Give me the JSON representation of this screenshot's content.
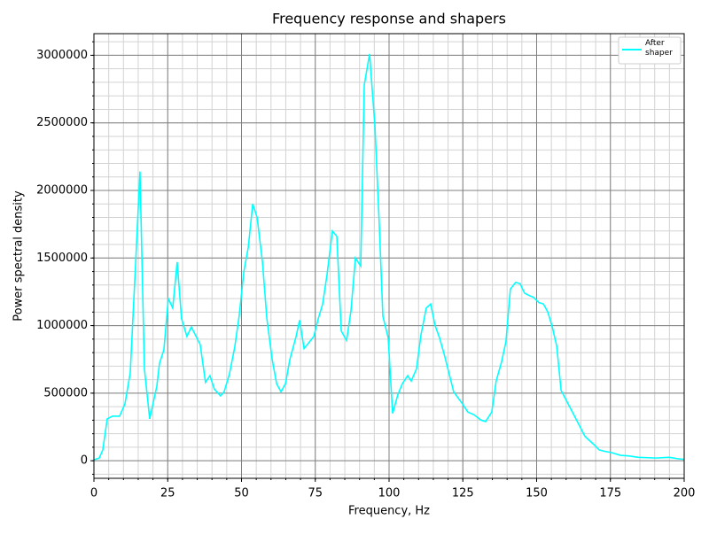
{
  "chart_data": {
    "type": "line",
    "title": "Frequency response and shapers",
    "x_label": "Frequency, Hz",
    "y_label": "Power spectral density",
    "xlim": [
      0,
      200
    ],
    "ylim": [
      -130000,
      3160000
    ],
    "xticks": [
      0,
      25,
      50,
      75,
      100,
      125,
      150,
      175,
      200
    ],
    "yticks": [
      0,
      500000,
      1000000,
      1500000,
      2000000,
      2500000,
      3000000
    ],
    "xticks_minor": [
      0,
      5,
      10,
      15,
      20,
      25,
      30,
      35,
      40,
      45,
      50,
      55,
      60,
      65,
      70,
      75,
      80,
      85,
      90,
      95,
      100,
      105,
      110,
      115,
      120,
      125,
      130,
      135,
      140,
      145,
      150,
      155,
      160,
      165,
      170,
      175,
      180,
      185,
      190,
      195,
      200
    ],
    "yticks_minor": [
      -100000,
      0,
      100000,
      200000,
      300000,
      400000,
      500000,
      600000,
      700000,
      800000,
      900000,
      1000000,
      1100000,
      1200000,
      1300000,
      1400000,
      1500000,
      1600000,
      1700000,
      1800000,
      1900000,
      2000000,
      2100000,
      2200000,
      2300000,
      2400000,
      2500000,
      2600000,
      2700000,
      2800000,
      2900000,
      3000000,
      3100000
    ],
    "grid": true,
    "legend": "upper right",
    "x": [
      0,
      1.8,
      3.0,
      4.5,
      6.3,
      8.7,
      10.5,
      12.3,
      14.1,
      15.6,
      17.1,
      18.9,
      21.3,
      22.2,
      23.7,
      25.2,
      26.7,
      28.2,
      29.7,
      31.5,
      33.0,
      36.0,
      37.8,
      39.3,
      40.8,
      42.9,
      44.1,
      45.9,
      47.7,
      49.2,
      50.8,
      52.3,
      53.8,
      55.3,
      57.1,
      58.6,
      60.4,
      61.9,
      63.4,
      64.9,
      66.4,
      68.5,
      69.7,
      71.2,
      72.7,
      74.5,
      76.0,
      77.5,
      79.0,
      80.8,
      82.3,
      83.8,
      85.6,
      87.1,
      88.6,
      90.4,
      91.6,
      93.4,
      95.2,
      96.7,
      97.9,
      99.7,
      101.2,
      103.0,
      104.5,
      106.3,
      107.5,
      109.3,
      110.8,
      112.6,
      114.1,
      115.6,
      117.1,
      118.9,
      121.9,
      124.9,
      126.7,
      128.8,
      131.2,
      132.7,
      134.8,
      136.3,
      138.1,
      139.6,
      141.1,
      142.9,
      144.4,
      145.9,
      147.7,
      148.9,
      150.8,
      152.3,
      153.8,
      155.3,
      156.8,
      158.3,
      161.9,
      166.4,
      169.4,
      171.2,
      173.0,
      175.4,
      178.4,
      181.4,
      184.4,
      190.4,
      194.9,
      197.9,
      200
    ],
    "series": [
      {
        "name": "After shaper",
        "color": "#00ffff",
        "values": [
          7000,
          20000,
          80000,
          310000,
          330000,
          330000,
          420000,
          650000,
          1450000,
          2140000,
          680000,
          310000,
          550000,
          720000,
          820000,
          1200000,
          1130000,
          1470000,
          1050000,
          920000,
          990000,
          860000,
          580000,
          630000,
          530000,
          480000,
          510000,
          640000,
          840000,
          1070000,
          1400000,
          1580000,
          1900000,
          1800000,
          1470000,
          1050000,
          750000,
          570000,
          510000,
          570000,
          750000,
          920000,
          1040000,
          830000,
          870000,
          920000,
          1050000,
          1160000,
          1380000,
          1700000,
          1660000,
          960000,
          890000,
          1110000,
          1500000,
          1440000,
          2780000,
          3010000,
          2480000,
          1740000,
          1070000,
          910000,
          350000,
          490000,
          570000,
          630000,
          590000,
          680000,
          930000,
          1130000,
          1160000,
          1000000,
          910000,
          770000,
          510000,
          420000,
          360000,
          340000,
          300000,
          290000,
          360000,
          590000,
          730000,
          880000,
          1270000,
          1320000,
          1310000,
          1240000,
          1220000,
          1210000,
          1170000,
          1160000,
          1100000,
          990000,
          850000,
          520000,
          370000,
          180000,
          120000,
          80000,
          70000,
          60000,
          40000,
          35000,
          25000,
          20000,
          25000,
          15000,
          10000
        ]
      }
    ]
  }
}
